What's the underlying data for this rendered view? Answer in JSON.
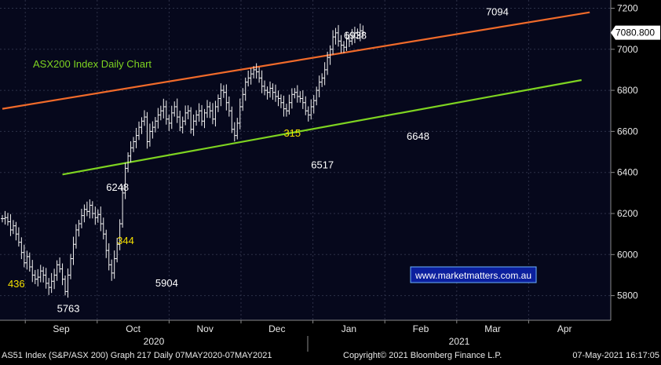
{
  "chart_data": {
    "type": "ohlc",
    "title": "ASX200 Index Daily Chart",
    "watermark": "www.marketmatters.com.au",
    "ylim": [
      5680,
      7240
    ],
    "yticks": [
      5800,
      6000,
      6200,
      6400,
      6600,
      6800,
      7000,
      7200
    ],
    "ytick_labels": [
      "5800",
      "6000",
      "6200",
      "6400",
      "6600",
      "6800",
      "7000",
      "7200"
    ],
    "last_price_label": "7080.800",
    "last_price": 7080.8,
    "months": [
      "Sep",
      "Oct",
      "Nov",
      "Dec",
      "Jan",
      "Feb",
      "Mar",
      "Apr"
    ],
    "years": [
      "2020",
      "2021"
    ],
    "footer": {
      "left": "AS51 Index (S&P/ASX 200) Graph 217  Daily 07MAY2020-07MAY2021",
      "center": "Copyright© 2021 Bloomberg Finance L.P.",
      "right": "07-May-2021 16:17:05"
    },
    "trendlines": [
      {
        "name": "upper",
        "color": "#f06a2a",
        "from": [
          0,
          6710
        ],
        "to": [
          215,
          7180
        ]
      },
      {
        "name": "lower",
        "color": "#7ed321",
        "from": [
          22,
          6390
        ],
        "to": [
          212,
          6850
        ]
      }
    ],
    "annotations": [
      {
        "text": "436",
        "color": "#f5e000",
        "x": 2,
        "y": 5840
      },
      {
        "text": "5763",
        "color": "#ffffff",
        "x": 20,
        "y": 5720
      },
      {
        "text": "6248",
        "color": "#ffffff",
        "x": 38,
        "y": 6310
      },
      {
        "text": "344",
        "color": "#f5e000",
        "x": 42,
        "y": 6050
      },
      {
        "text": "5904",
        "color": "#ffffff",
        "x": 56,
        "y": 5845
      },
      {
        "text": "315",
        "color": "#f5e000",
        "x": 103,
        "y": 6575
      },
      {
        "text": "6517",
        "color": "#ffffff",
        "x": 113,
        "y": 6420
      },
      {
        "text": "6938",
        "color": "#ffffff",
        "x": 125,
        "y": 7050
      },
      {
        "text": "6648",
        "color": "#ffffff",
        "x": 148,
        "y": 6560
      },
      {
        "text": "7094",
        "color": "#ffffff",
        "x": 177,
        "y": 7165
      }
    ],
    "series": [
      {
        "name": "",
        "values": [
          6175,
          6180,
          6160,
          6120,
          6140,
          6100,
          6060,
          6010,
          5960,
          5990,
          5940,
          5900,
          5880,
          5890,
          5920,
          5900,
          5860,
          5840,
          5870,
          5900,
          5950,
          5930,
          5880,
          5820,
          5900,
          5980,
          6050,
          6120,
          6150,
          6190,
          6220,
          6210,
          6240,
          6200,
          6180,
          6195,
          6150,
          6100,
          6020,
          5950,
          5910,
          5980,
          6050,
          6150,
          6300,
          6420,
          6480,
          6520,
          6550,
          6580,
          6620,
          6650,
          6670,
          6550,
          6600,
          6620,
          6650,
          6680,
          6700,
          6720,
          6660,
          6640,
          6690,
          6720,
          6670,
          6620,
          6650,
          6690,
          6700,
          6610,
          6650,
          6680,
          6700,
          6650,
          6690,
          6720,
          6700,
          6660,
          6720,
          6760,
          6800,
          6790,
          6740,
          6700,
          6610,
          6580,
          6640,
          6720,
          6780,
          6840,
          6860,
          6880,
          6900,
          6890,
          6860,
          6820,
          6800,
          6790,
          6810,
          6790,
          6770,
          6760,
          6740,
          6710,
          6700,
          6740,
          6780,
          6790,
          6770,
          6760,
          6740,
          6700,
          6680,
          6720,
          6750,
          6800,
          6840,
          6860,
          6900,
          6960,
          7000,
          7060,
          7080,
          7040,
          7020,
          7010,
          7050,
          7040,
          7060,
          7080,
          7070,
          7090,
          7080
        ]
      }
    ]
  }
}
